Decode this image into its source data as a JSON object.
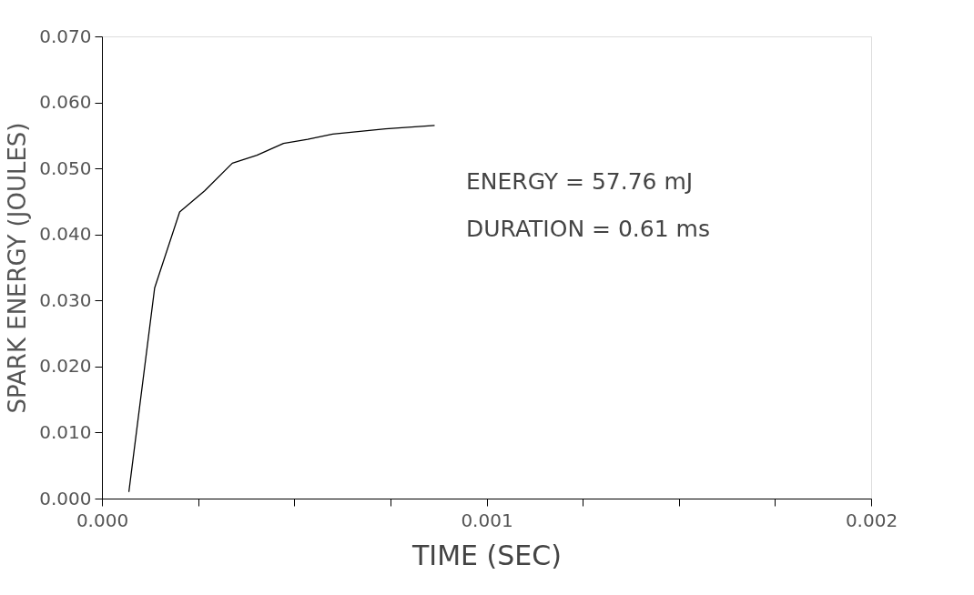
{
  "chart_data": {
    "type": "line",
    "xlabel": "TIME (SEC)",
    "ylabel": "SPARK ENERGY (JOULES)",
    "x": [
      7e-05,
      0.000137,
      0.000202,
      0.000267,
      0.000339,
      0.000403,
      0.000472,
      0.000535,
      0.0006,
      0.000737,
      0.000865
    ],
    "series": [
      {
        "color": "#000000",
        "values": [
          0.001,
          0.0319,
          0.0434,
          0.0466,
          0.0508,
          0.052,
          0.0538,
          0.0544,
          0.0552,
          0.056,
          0.0565
        ]
      }
    ],
    "xlim": [
      0,
      0.002
    ],
    "ylim": [
      0,
      0.07
    ],
    "xticks": [
      {
        "value": 0,
        "label": "0.000"
      },
      {
        "value": 0.00025,
        "label": null
      },
      {
        "value": 0.0005,
        "label": null
      },
      {
        "value": 0.00075,
        "label": null
      },
      {
        "value": 0.001,
        "label": "0.001"
      },
      {
        "value": 0.00125,
        "label": null
      },
      {
        "value": 0.0015,
        "label": null
      },
      {
        "value": 0.00175,
        "label": null
      },
      {
        "value": 0.002,
        "label": "0.002"
      }
    ],
    "yticks": [
      {
        "value": 0,
        "label": "0.000"
      },
      {
        "value": 0.01,
        "label": "0.010"
      },
      {
        "value": 0.02,
        "label": "0.020"
      },
      {
        "value": 0.03,
        "label": "0.030"
      },
      {
        "value": 0.04,
        "label": "0.040"
      },
      {
        "value": 0.05,
        "label": "0.050"
      },
      {
        "value": 0.06,
        "label": "0.060"
      },
      {
        "value": 0.07,
        "label": "0.070"
      }
    ],
    "annotations": [
      "ENERGY = 57.76 mJ",
      "DURATION = 0.61 ms"
    ],
    "grid": false,
    "marker": "none",
    "line_style": "solid"
  }
}
